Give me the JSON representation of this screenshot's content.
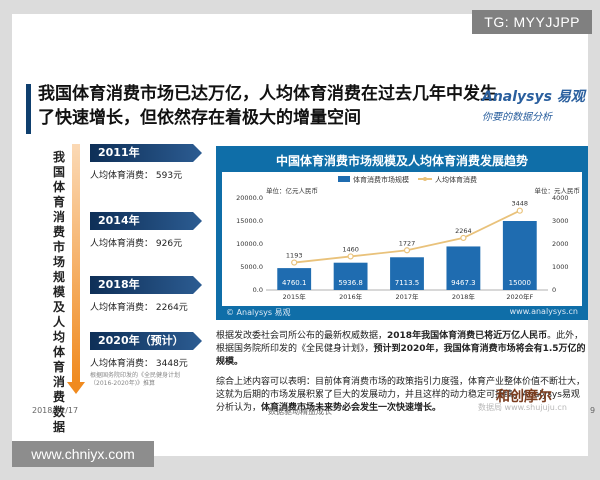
{
  "watermark_tag": "TG: MYYJJPP",
  "headline": "我国体育消费市场已达万亿，人均体育消费在过去几年中发生了快速增长，但依然存在着极大的增量空间",
  "logo": {
    "main": "Analysys 易观",
    "sub": "你要的数据分析"
  },
  "side_title": "我国体育消费市场规模及人均体育消费数据",
  "cards": [
    {
      "year": "2011年",
      "label": "人均体育消费：",
      "value": "593元"
    },
    {
      "year": "2014年",
      "label": "人均体育消费：",
      "value": "926元"
    },
    {
      "year": "2018年",
      "label": "人均体育消费：",
      "value": "2264元"
    },
    {
      "year": "2020年（预计）",
      "label": "人均体育消费：",
      "value": "3448元",
      "note": "根据国务院印发的《全民健身计划（2016-2020年)》推算"
    }
  ],
  "chart_data": {
    "type": "bar",
    "title": "中国体育消费市场规模及人均体育消费发展趋势",
    "categories": [
      "2015年",
      "2016年",
      "2017年",
      "2018年",
      "2020年F"
    ],
    "series": [
      {
        "name": "体育消费市场规模",
        "type": "bar",
        "axis": "left",
        "color": "#1f6cb0",
        "values": [
          4760.1,
          5936.8,
          7113.5,
          9467.3,
          15000
        ],
        "labels": [
          "4760.1",
          "5936.8",
          "7113.5",
          "9467.3",
          "15000"
        ]
      },
      {
        "name": "人均体育消费",
        "type": "line",
        "axis": "right",
        "color": "#e9c27b",
        "values": [
          1193,
          1460,
          1727,
          2264,
          3448
        ],
        "labels": [
          "1193",
          "1460",
          "1727",
          "2264",
          "3448"
        ]
      }
    ],
    "left_axis": {
      "unit": "单位：亿元人民币",
      "ticks": [
        "20000.0",
        "15000.0",
        "10000.0",
        "5000.0",
        "0.0"
      ],
      "ylim": [
        0,
        20000
      ]
    },
    "right_axis": {
      "unit": "单位：元人民币",
      "ticks": [
        "4000",
        "3000",
        "2000",
        "1000",
        "0"
      ],
      "ylim": [
        0,
        4000
      ]
    },
    "legend_position": "top",
    "source_left": "© Analysys 易观",
    "source_right": "www.analysys.cn"
  },
  "body": {
    "p1a": "根据发改委社会司所公布的最新权威数据，",
    "p1b": "2018年我国体育消费已将近万亿人民币",
    "p1c": "。此外，根据国务院所印发的《全民健身计划》，",
    "p1d": "预计到2020年，我国体育消费市场将会有1.5万亿的规模。",
    "p2a": "综合上述内容可以表明：目前体育消费市场的政策指引力度强，体育产业整体价值不断壮大，这就为后期的市场发展积累了巨大的发展动力，并且这样的动力稳定可持续。Analysys易观分析认为，",
    "p2b": "体育消费市场未来势必会发生一次快速增长。"
  },
  "footer": {
    "date": "2018/12/17",
    "middle": "数据驱动精益成长",
    "page": "9",
    "brand": "和创摩尔",
    "wm": "数据局 www.shujuju.cn"
  },
  "url": "www.chniyx.com"
}
